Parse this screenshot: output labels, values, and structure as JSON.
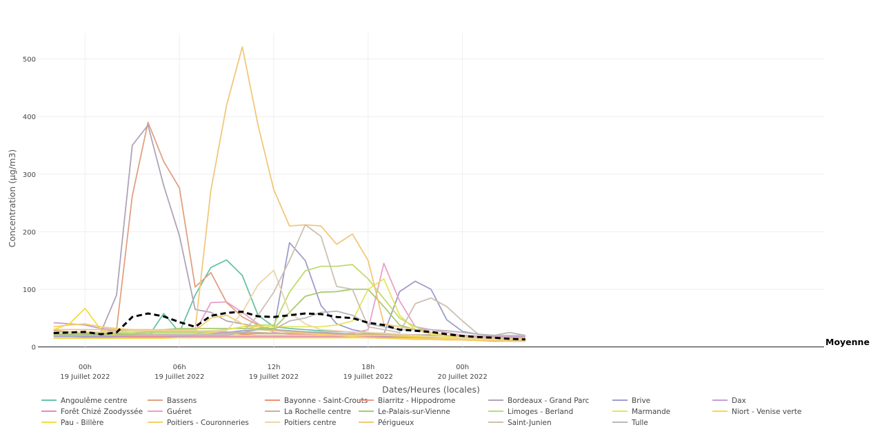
{
  "chart_data": {
    "type": "line",
    "xlabel": "Dates/Heures (locales)",
    "ylabel": "Concentration (µg/m3)",
    "x_range": [
      -3,
      47
    ],
    "ylim": [
      -10,
      545
    ],
    "grid": true,
    "legend_position": "bottom",
    "x_ticks": [
      {
        "hour": 0,
        "line1": "00h",
        "line2": "19 Juillet 2022"
      },
      {
        "hour": 6,
        "line1": "06h",
        "line2": "19 Juillet 2022"
      },
      {
        "hour": 12,
        "line1": "12h",
        "line2": "19 Juillet 2022"
      },
      {
        "hour": 18,
        "line1": "18h",
        "line2": "19 Juillet 2022"
      },
      {
        "hour": 24,
        "line1": "00h",
        "line2": "20 Juillet 2022"
      }
    ],
    "y_ticks": [
      0,
      100,
      200,
      300,
      400,
      500
    ],
    "hours": [
      -2,
      -1,
      0,
      1,
      2,
      3,
      4,
      5,
      6,
      7,
      8,
      9,
      10,
      11,
      12,
      13,
      14,
      15,
      16,
      17,
      18,
      19,
      20,
      21,
      22,
      23,
      24,
      25,
      26,
      27,
      28
    ],
    "series": [
      {
        "name": "Angoulême centre",
        "color": "#66c2a5",
        "values": [
          22,
          21,
          20,
          19,
          20,
          18,
          17,
          58,
          25,
          90,
          138,
          151,
          124,
          55,
          35,
          32,
          30,
          28,
          27,
          26,
          24,
          22,
          20,
          18,
          16,
          15,
          14,
          13,
          13,
          12,
          12
        ]
      },
      {
        "name": "Bassens",
        "color": "#e0a081",
        "values": [
          28,
          26,
          25,
          24,
          30,
          262,
          390,
          322,
          276,
          104,
          129,
          77,
          52,
          38,
          30,
          28,
          26,
          25,
          24,
          22,
          21,
          20,
          18,
          17,
          16,
          15,
          14,
          13,
          13,
          12,
          12
        ]
      },
      {
        "name": "Bayonne - Saint-Crouts",
        "color": "#f08c70",
        "values": [
          20,
          20,
          20,
          19,
          19,
          18,
          18,
          18,
          19,
          20,
          22,
          25,
          22,
          20,
          18,
          18,
          18,
          18,
          18,
          18,
          18,
          17,
          16,
          15,
          14,
          13,
          12,
          12,
          11,
          11,
          11
        ]
      },
      {
        "name": "Biarritz - Hippodrome",
        "color": "#ec9a8e",
        "values": [
          25,
          25,
          24,
          23,
          23,
          22,
          22,
          21,
          21,
          21,
          21,
          20,
          20,
          19,
          19,
          19,
          19,
          19,
          19,
          18,
          18,
          17,
          16,
          15,
          14,
          13,
          12,
          11,
          10,
          10,
          10
        ]
      },
      {
        "name": "Bordeaux - Grand Parc",
        "color": "#b0a2b8",
        "values": [
          20,
          20,
          22,
          25,
          90,
          350,
          385,
          280,
          193,
          65,
          60,
          45,
          40,
          35,
          30,
          28,
          26,
          25,
          24,
          22,
          20,
          19,
          18,
          17,
          16,
          15,
          14,
          13,
          13,
          12,
          12
        ]
      },
      {
        "name": "Brive",
        "color": "#9e9ccc",
        "values": [
          18,
          18,
          18,
          18,
          18,
          17,
          17,
          17,
          18,
          20,
          22,
          25,
          28,
          30,
          30,
          181,
          150,
          72,
          40,
          30,
          25,
          22,
          96,
          114,
          100,
          47,
          27,
          22,
          20,
          20,
          20
        ]
      },
      {
        "name": "Dax",
        "color": "#c39ed6",
        "values": [
          42,
          40,
          38,
          32,
          30,
          28,
          27,
          26,
          25,
          25,
          24,
          24,
          24,
          23,
          23,
          23,
          22,
          22,
          22,
          22,
          22,
          22,
          22,
          21,
          21,
          20,
          20,
          19,
          19,
          18,
          18
        ]
      },
      {
        "name": "Forêt Chizé Zoodyssée",
        "color": "#e58ac2",
        "values": [
          15,
          15,
          16,
          16,
          17,
          17,
          17,
          17,
          17,
          18,
          18,
          18,
          18,
          18,
          18,
          18,
          18,
          18,
          17,
          17,
          17,
          17,
          16,
          16,
          15,
          15,
          14,
          14,
          13,
          13,
          13
        ]
      },
      {
        "name": "Guéret",
        "color": "#e8a0c8",
        "values": [
          20,
          20,
          20,
          20,
          20,
          22,
          25,
          25,
          25,
          26,
          77,
          78,
          60,
          40,
          25,
          22,
          22,
          22,
          22,
          24,
          30,
          145,
          80,
          35,
          30,
          25,
          20,
          18,
          17,
          16,
          16
        ]
      },
      {
        "name": "La Rochelle centre",
        "color": "#ccb09a",
        "values": [
          30,
          30,
          30,
          30,
          28,
          28,
          28,
          28,
          27,
          27,
          26,
          26,
          25,
          25,
          24,
          24,
          24,
          23,
          23,
          22,
          22,
          22,
          21,
          21,
          20,
          19,
          18,
          17,
          17,
          16,
          16
        ]
      },
      {
        "name": "Le-Palais-sur-Vienne",
        "color": "#a6cb6a",
        "values": [
          22,
          22,
          22,
          22,
          22,
          22,
          22,
          30,
          32,
          32,
          32,
          32,
          32,
          32,
          32,
          60,
          88,
          95,
          96,
          100,
          100,
          70,
          38,
          30,
          25,
          20,
          18,
          16,
          15,
          15,
          15
        ]
      },
      {
        "name": "Limoges - Berland",
        "color": "#bedc6c",
        "values": [
          25,
          25,
          25,
          25,
          25,
          25,
          25,
          25,
          25,
          25,
          28,
          30,
          35,
          38,
          38,
          95,
          132,
          140,
          140,
          143,
          118,
          84,
          50,
          35,
          25,
          20,
          18,
          16,
          15,
          15,
          15
        ]
      },
      {
        "name": "Marmande",
        "color": "#e5e55c",
        "values": [
          20,
          20,
          20,
          20,
          20,
          20,
          20,
          20,
          20,
          22,
          25,
          30,
          35,
          35,
          35,
          35,
          35,
          35,
          38,
          45,
          100,
          118,
          55,
          30,
          22,
          18,
          16,
          15,
          14,
          14,
          14
        ]
      },
      {
        "name": "Niort - Venise verte",
        "color": "#f2d84e",
        "values": [
          15,
          15,
          15,
          15,
          15,
          15,
          15,
          15,
          16,
          16,
          16,
          16,
          16,
          16,
          16,
          16,
          16,
          16,
          16,
          16,
          16,
          15,
          15,
          15,
          14,
          14,
          14,
          13,
          13,
          13,
          13
        ]
      },
      {
        "name": "Pau - Billère",
        "color": "#f4de3e",
        "values": [
          30,
          40,
          67,
          30,
          20,
          20,
          20,
          20,
          20,
          20,
          20,
          20,
          20,
          20,
          20,
          20,
          20,
          20,
          20,
          20,
          20,
          20,
          19,
          18,
          17,
          16,
          15,
          14,
          14,
          13,
          13
        ]
      },
      {
        "name": "Poitiers - Couronneries",
        "color": "#f5cf6a",
        "values": [
          35,
          38,
          40,
          35,
          32,
          30,
          30,
          28,
          28,
          28,
          50,
          55,
          40,
          30,
          28,
          26,
          24,
          22,
          20,
          18,
          16,
          15,
          14,
          13,
          13,
          12,
          12,
          11,
          11,
          10,
          10
        ]
      },
      {
        "name": "Poitiers centre",
        "color": "#ead6ac",
        "values": [
          25,
          25,
          26,
          26,
          26,
          28,
          28,
          28,
          28,
          28,
          28,
          28,
          60,
          108,
          133,
          60,
          40,
          30,
          28,
          26,
          25,
          24,
          22,
          20,
          18,
          16,
          15,
          14,
          13,
          13,
          13
        ]
      },
      {
        "name": "Périgueux",
        "color": "#f1c77a",
        "values": [
          30,
          30,
          30,
          30,
          30,
          30,
          30,
          30,
          30,
          30,
          272,
          420,
          521,
          385,
          273,
          210,
          212,
          210,
          178,
          196,
          150,
          40,
          35,
          30,
          25,
          20,
          18,
          16,
          15,
          14,
          14
        ]
      },
      {
        "name": "Saint-Junien",
        "color": "#cbc0b2",
        "values": [
          20,
          20,
          20,
          20,
          20,
          20,
          22,
          22,
          22,
          22,
          22,
          22,
          25,
          55,
          95,
          150,
          212,
          192,
          105,
          100,
          35,
          30,
          25,
          75,
          85,
          70,
          45,
          22,
          20,
          20,
          20
        ]
      },
      {
        "name": "Tulle",
        "color": "#b8b8b8",
        "values": [
          20,
          20,
          20,
          20,
          20,
          20,
          20,
          20,
          20,
          20,
          20,
          20,
          25,
          30,
          30,
          45,
          50,
          60,
          62,
          55,
          40,
          35,
          30,
          30,
          30,
          28,
          25,
          22,
          20,
          25,
          20
        ]
      },
      {
        "name": "Moyenne",
        "color": "#000000",
        "dashed": true,
        "values": [
          24,
          25,
          26,
          22,
          25,
          52,
          58,
          53,
          43,
          35,
          54,
          59,
          61,
          53,
          52,
          55,
          58,
          57,
          52,
          50,
          42,
          38,
          30,
          28,
          26,
          22,
          19,
          17,
          16,
          14,
          13
        ]
      }
    ],
    "end_label": "Moyenne"
  }
}
